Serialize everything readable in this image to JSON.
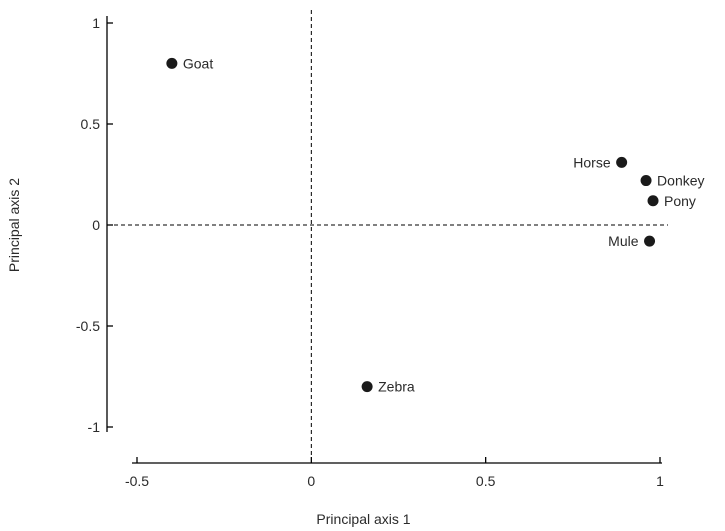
{
  "chart_data": {
    "type": "scatter",
    "xlabel": "Principal axis 1",
    "ylabel": "Principal axis 2",
    "xlim": [
      -0.5,
      1
    ],
    "ylim": [
      -1,
      1
    ],
    "x_ticks": [
      {
        "value": -0.5,
        "label": "-0.5"
      },
      {
        "value": 0,
        "label": "0"
      },
      {
        "value": 0.5,
        "label": "0.5"
      },
      {
        "value": 1,
        "label": "1"
      }
    ],
    "y_ticks": [
      {
        "value": -1,
        "label": "-1"
      },
      {
        "value": -0.5,
        "label": "-0.5"
      },
      {
        "value": 0,
        "label": "0"
      },
      {
        "value": 0.5,
        "label": "0.5"
      },
      {
        "value": 1,
        "label": "1"
      }
    ],
    "reference_lines": {
      "x": 0,
      "y": 0,
      "style": "dashed"
    },
    "grid": false,
    "point_color": "#1a1a1a",
    "points": [
      {
        "label": "Goat",
        "x": -0.4,
        "y": 0.8,
        "label_side": "right"
      },
      {
        "label": "Horse",
        "x": 0.89,
        "y": 0.31,
        "label_side": "left"
      },
      {
        "label": "Donkey",
        "x": 0.96,
        "y": 0.22,
        "label_side": "right"
      },
      {
        "label": "Pony",
        "x": 0.98,
        "y": 0.12,
        "label_side": "right"
      },
      {
        "label": "Mule",
        "x": 0.97,
        "y": -0.08,
        "label_side": "left"
      },
      {
        "label": "Zebra",
        "x": 0.16,
        "y": -0.8,
        "label_side": "right"
      }
    ]
  }
}
